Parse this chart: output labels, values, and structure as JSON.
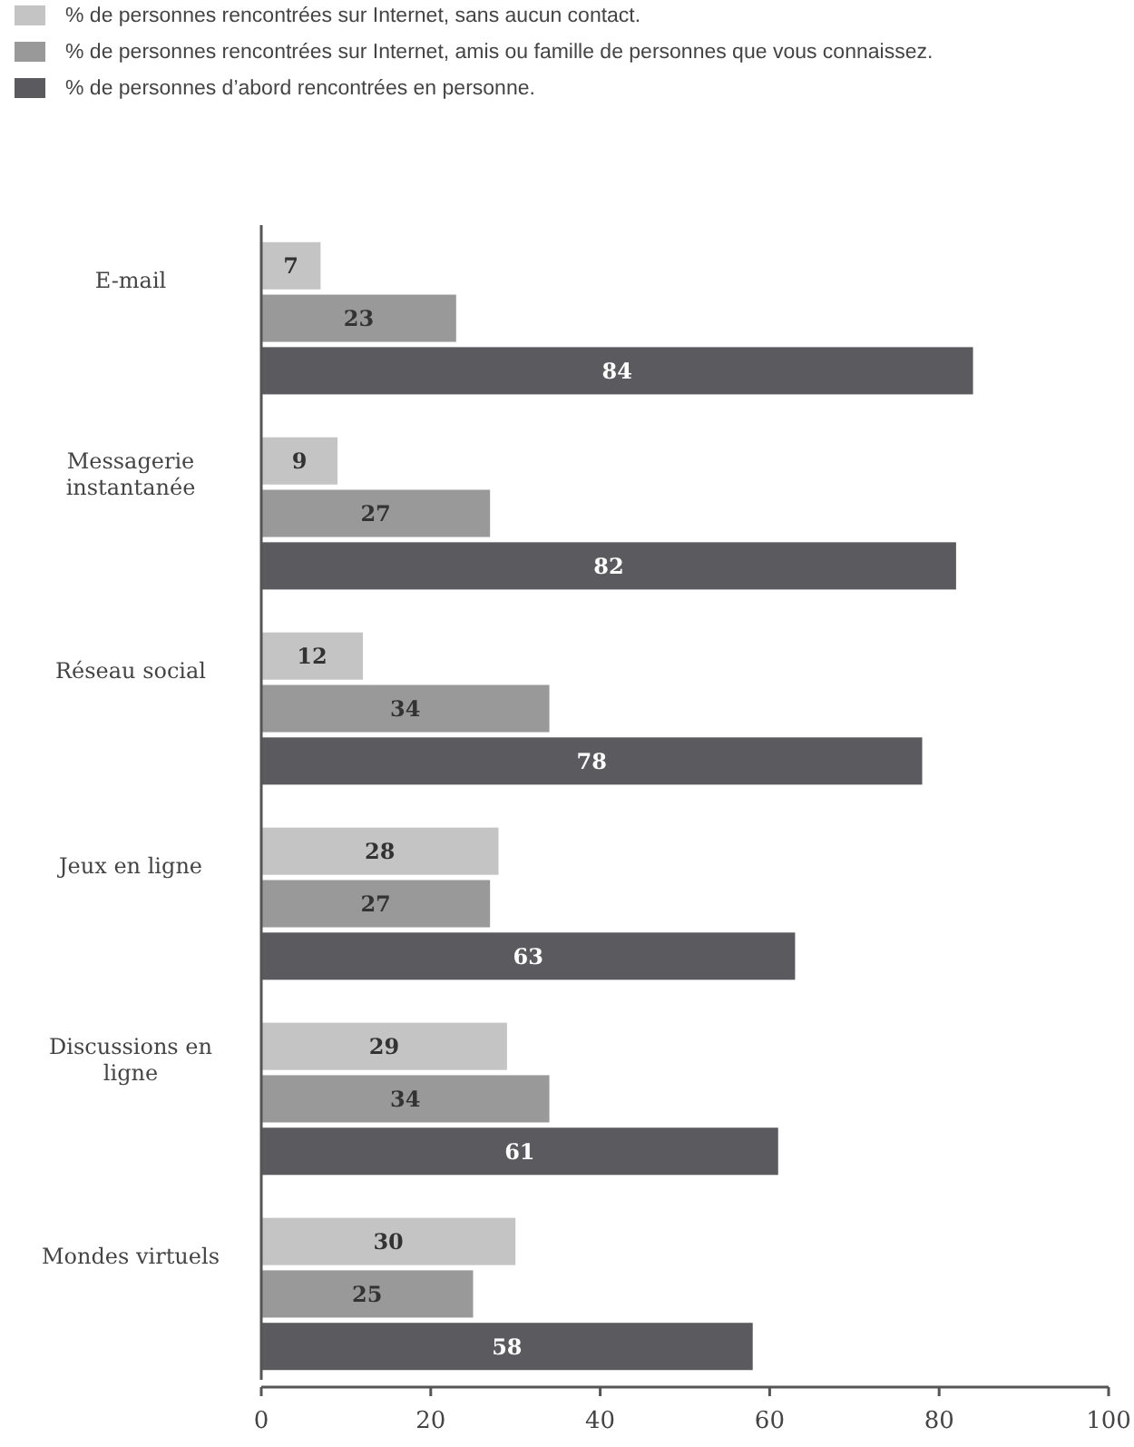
{
  "chart_data": {
    "type": "bar",
    "orientation": "horizontal",
    "categories": [
      "E-mail",
      "Messagerie instantanée",
      "Réseau social",
      "Jeux en ligne",
      "Discussions en ligne",
      "Mondes virtuels"
    ],
    "series": [
      {
        "name": "% de personnes rencontrées sur Internet, sans aucun contact.",
        "color": "#c4c4c4",
        "values": [
          7,
          9,
          12,
          28,
          29,
          30
        ]
      },
      {
        "name": "% de personnes rencontrées sur Internet, amis ou famille de personnes que vous connaissez.",
        "color": "#999999",
        "values": [
          23,
          27,
          34,
          27,
          34,
          25
        ]
      },
      {
        "name": "% de personnes d’abord rencontrées en personne.",
        "color": "#5b5a5f",
        "values": [
          84,
          82,
          78,
          63,
          61,
          58
        ]
      }
    ],
    "xlim": [
      0,
      100
    ],
    "xticks": [
      0,
      20,
      40,
      60,
      80,
      100
    ],
    "data_labels": true,
    "legend": "top left",
    "grid": false
  }
}
